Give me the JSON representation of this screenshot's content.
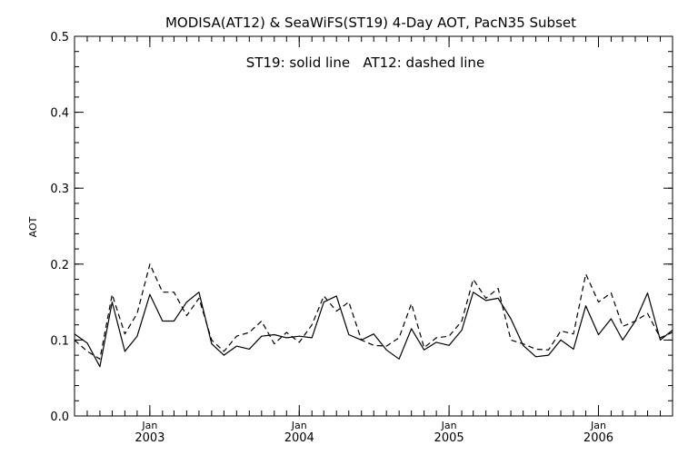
{
  "chart_data": {
    "type": "line",
    "title": "MODISA(AT12) & SeaWiFS(ST19) 4-Day AOT, PacN35 Subset",
    "annotation": "ST19: solid line   AT12: dashed line",
    "ylabel": "AOT",
    "xlabel": "",
    "ylim": [
      0.0,
      0.5
    ],
    "xlim": [
      "2002-07-01",
      "2006-07-01"
    ],
    "yticks": [
      0.0,
      0.1,
      0.2,
      0.3,
      0.4,
      0.5
    ],
    "ytick_labels": [
      "0.0",
      "0.1",
      "0.2",
      "0.3",
      "0.4",
      "0.5"
    ],
    "xticks": [
      {
        "date": "2003-01-01",
        "month": "Jan",
        "year": "2003"
      },
      {
        "date": "2004-01-01",
        "month": "Jan",
        "year": "2004"
      },
      {
        "date": "2005-01-01",
        "month": "Jan",
        "year": "2005"
      },
      {
        "date": "2006-01-01",
        "month": "Jan",
        "year": "2006"
      }
    ],
    "grid": false,
    "series": [
      {
        "name": "ST19",
        "style": "solid",
        "color": "#000000",
        "points": [
          [
            "2002-07-01",
            0.108
          ],
          [
            "2002-08-01",
            0.096
          ],
          [
            "2002-09-01",
            0.065
          ],
          [
            "2002-10-01",
            0.15
          ],
          [
            "2002-11-01",
            0.085
          ],
          [
            "2002-12-01",
            0.105
          ],
          [
            "2003-01-01",
            0.16
          ],
          [
            "2003-02-01",
            0.125
          ],
          [
            "2003-03-01",
            0.125
          ],
          [
            "2003-04-01",
            0.15
          ],
          [
            "2003-05-01",
            0.163
          ],
          [
            "2003-06-01",
            0.095
          ],
          [
            "2003-07-01",
            0.08
          ],
          [
            "2003-08-01",
            0.092
          ],
          [
            "2003-09-01",
            0.088
          ],
          [
            "2003-10-01",
            0.105
          ],
          [
            "2003-11-01",
            0.107
          ],
          [
            "2003-12-01",
            0.103
          ],
          [
            "2004-01-01",
            0.105
          ],
          [
            "2004-02-01",
            0.103
          ],
          [
            "2004-03-01",
            0.15
          ],
          [
            "2004-04-01",
            0.158
          ],
          [
            "2004-05-01",
            0.107
          ],
          [
            "2004-06-01",
            0.1
          ],
          [
            "2004-07-01",
            0.108
          ],
          [
            "2004-08-01",
            0.087
          ],
          [
            "2004-09-01",
            0.075
          ],
          [
            "2004-10-01",
            0.115
          ],
          [
            "2004-11-01",
            0.087
          ],
          [
            "2004-12-01",
            0.097
          ],
          [
            "2005-01-01",
            0.093
          ],
          [
            "2005-02-01",
            0.113
          ],
          [
            "2005-03-01",
            0.163
          ],
          [
            "2005-04-01",
            0.152
          ],
          [
            "2005-05-01",
            0.155
          ],
          [
            "2005-06-01",
            0.128
          ],
          [
            "2005-07-01",
            0.093
          ],
          [
            "2005-08-01",
            0.078
          ],
          [
            "2005-09-01",
            0.08
          ],
          [
            "2005-10-01",
            0.1
          ],
          [
            "2005-11-01",
            0.088
          ],
          [
            "2005-12-01",
            0.145
          ],
          [
            "2006-01-01",
            0.107
          ],
          [
            "2006-02-01",
            0.128
          ],
          [
            "2006-03-01",
            0.1
          ],
          [
            "2006-04-01",
            0.125
          ],
          [
            "2006-05-01",
            0.162
          ],
          [
            "2006-06-01",
            0.1
          ],
          [
            "2006-07-01",
            0.113
          ]
        ]
      },
      {
        "name": "AT12",
        "style": "dashed",
        "color": "#000000",
        "points": [
          [
            "2002-07-01",
            0.1
          ],
          [
            "2002-08-01",
            0.085
          ],
          [
            "2002-09-01",
            0.075
          ],
          [
            "2002-10-01",
            0.16
          ],
          [
            "2002-11-01",
            0.108
          ],
          [
            "2002-12-01",
            0.135
          ],
          [
            "2003-01-01",
            0.2
          ],
          [
            "2003-02-01",
            0.163
          ],
          [
            "2003-03-01",
            0.163
          ],
          [
            "2003-04-01",
            0.132
          ],
          [
            "2003-05-01",
            0.155
          ],
          [
            "2003-06-01",
            0.1
          ],
          [
            "2003-07-01",
            0.085
          ],
          [
            "2003-08-01",
            0.105
          ],
          [
            "2003-09-01",
            0.11
          ],
          [
            "2003-10-01",
            0.125
          ],
          [
            "2003-11-01",
            0.095
          ],
          [
            "2003-12-01",
            0.11
          ],
          [
            "2004-01-01",
            0.097
          ],
          [
            "2004-02-01",
            0.12
          ],
          [
            "2004-03-01",
            0.158
          ],
          [
            "2004-04-01",
            0.138
          ],
          [
            "2004-05-01",
            0.15
          ],
          [
            "2004-06-01",
            0.1
          ],
          [
            "2004-07-01",
            0.093
          ],
          [
            "2004-08-01",
            0.092
          ],
          [
            "2004-09-01",
            0.103
          ],
          [
            "2004-10-01",
            0.148
          ],
          [
            "2004-11-01",
            0.09
          ],
          [
            "2004-12-01",
            0.103
          ],
          [
            "2005-01-01",
            0.105
          ],
          [
            "2005-02-01",
            0.125
          ],
          [
            "2005-03-01",
            0.18
          ],
          [
            "2005-04-01",
            0.155
          ],
          [
            "2005-05-01",
            0.168
          ],
          [
            "2005-06-01",
            0.1
          ],
          [
            "2005-07-01",
            0.095
          ],
          [
            "2005-08-01",
            0.088
          ],
          [
            "2005-09-01",
            0.087
          ],
          [
            "2005-10-01",
            0.112
          ],
          [
            "2005-11-01",
            0.108
          ],
          [
            "2005-12-01",
            0.187
          ],
          [
            "2006-01-01",
            0.15
          ],
          [
            "2006-02-01",
            0.162
          ],
          [
            "2006-03-01",
            0.118
          ],
          [
            "2006-04-01",
            0.125
          ],
          [
            "2006-05-01",
            0.135
          ],
          [
            "2006-06-01",
            0.103
          ],
          [
            "2006-07-01",
            0.11
          ]
        ]
      }
    ]
  }
}
